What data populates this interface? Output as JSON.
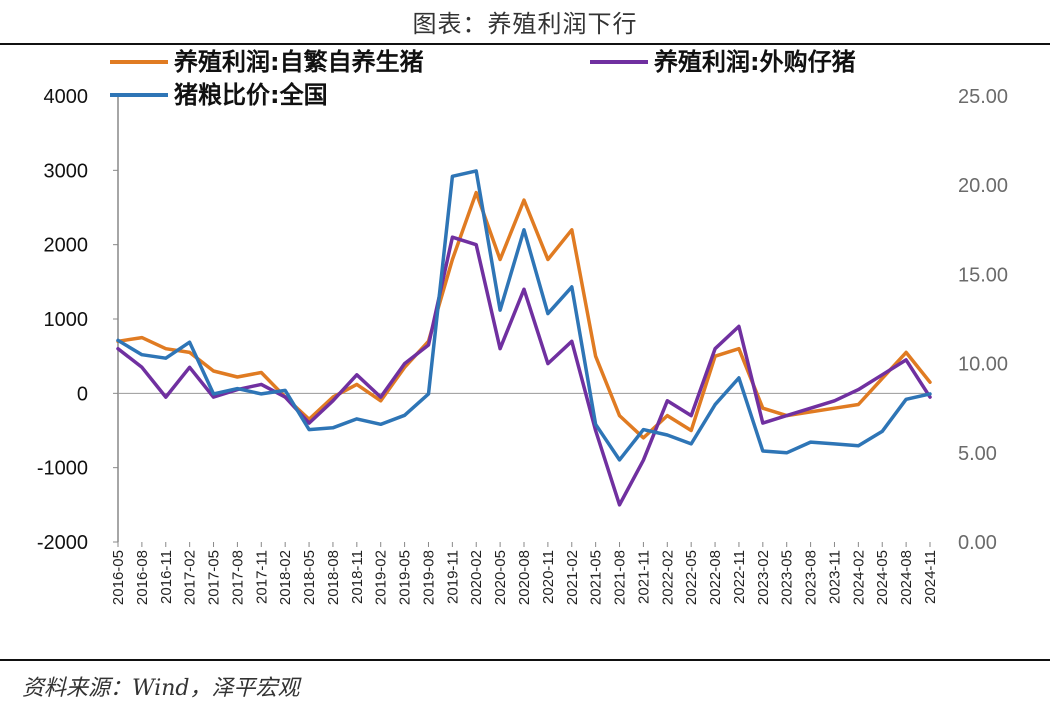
{
  "title": "图表：养殖利润下行",
  "source": "资料来源：Wind，泽平宏观",
  "chart_data": {
    "type": "line",
    "x": [
      "2016-05",
      "2016-08",
      "2016-11",
      "2017-02",
      "2017-05",
      "2017-08",
      "2017-11",
      "2018-02",
      "2018-05",
      "2018-08",
      "2018-11",
      "2019-02",
      "2019-05",
      "2019-08",
      "2019-11",
      "2020-02",
      "2020-05",
      "2020-08",
      "2020-11",
      "2021-02",
      "2021-05",
      "2021-08",
      "2021-11",
      "2022-02",
      "2022-05",
      "2022-08",
      "2022-11",
      "2023-02",
      "2023-05",
      "2023-08",
      "2023-11",
      "2024-02",
      "2024-05",
      "2024-08",
      "2024-11"
    ],
    "y_left": {
      "ticks": [
        "4000",
        "3000",
        "2000",
        "1000",
        "0",
        "-1000",
        "-2000"
      ],
      "ylim": [
        -2000,
        4000
      ]
    },
    "y_right": {
      "ticks": [
        "25.00",
        "20.00",
        "15.00",
        "10.00",
        "5.00",
        "0.00"
      ],
      "ylim": [
        0,
        25
      ]
    },
    "series": [
      {
        "name": "养殖利润:自繁自养生猪",
        "axis": "left",
        "color": "#E07B22",
        "values": [
          700,
          750,
          600,
          550,
          300,
          220,
          280,
          -50,
          -350,
          -50,
          120,
          -100,
          350,
          700,
          1800,
          2700,
          1800,
          2600,
          1800,
          2200,
          500,
          -300,
          -600,
          -300,
          -500,
          500,
          600,
          -200,
          -300,
          -250,
          -200,
          -150,
          200,
          550,
          150
        ]
      },
      {
        "name": "养殖利润:外购仔猪",
        "axis": "left",
        "color": "#7030A0",
        "values": [
          600,
          350,
          -50,
          350,
          -50,
          50,
          120,
          -50,
          -400,
          -100,
          250,
          -50,
          400,
          650,
          2100,
          2000,
          600,
          1400,
          400,
          700,
          -500,
          -1500,
          -900,
          -100,
          -300,
          600,
          900,
          -400,
          -300,
          -200,
          -100,
          50,
          250,
          450,
          -50
        ]
      },
      {
        "name": "猪粮比价:全国",
        "axis": "right",
        "color": "#2E75B6",
        "values": [
          11.3,
          10.5,
          10.3,
          11.2,
          8.3,
          8.6,
          8.3,
          8.5,
          6.3,
          6.4,
          6.9,
          6.6,
          7.1,
          8.3,
          20.5,
          20.8,
          13.0,
          17.5,
          12.8,
          14.3,
          6.6,
          4.6,
          6.3,
          6.0,
          5.5,
          7.7,
          9.2,
          5.1,
          5.0,
          5.6,
          5.5,
          5.4,
          6.2,
          8.0,
          8.3
        ]
      }
    ],
    "legend": "top"
  }
}
